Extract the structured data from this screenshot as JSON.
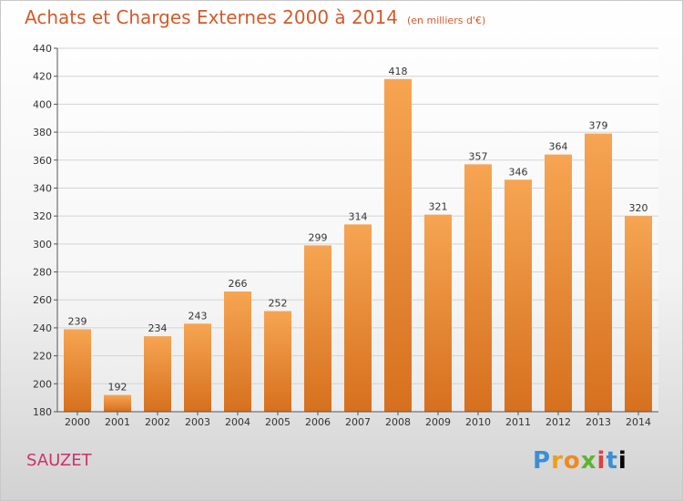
{
  "header": {
    "title": "Achats et Charges Externes 2000 à 2014",
    "unit": "(en milliers d'€)"
  },
  "footer": {
    "commune": "SAUZET",
    "logo_letters": [
      "P",
      "r",
      "o",
      "x",
      "i",
      "t",
      "i"
    ]
  },
  "chart_data": {
    "type": "bar",
    "categories": [
      "2000",
      "2001",
      "2002",
      "2003",
      "2004",
      "2005",
      "2006",
      "2007",
      "2008",
      "2009",
      "2010",
      "2011",
      "2012",
      "2013",
      "2014"
    ],
    "values": [
      239,
      192,
      234,
      243,
      266,
      252,
      299,
      314,
      418,
      321,
      357,
      346,
      364,
      379,
      320
    ],
    "title": "Achats et Charges Externes 2000 à 2014",
    "ylim": [
      180,
      440
    ],
    "yticks": [
      180,
      200,
      220,
      240,
      260,
      280,
      300,
      320,
      340,
      360,
      380,
      400,
      420,
      440
    ],
    "grid": true,
    "bar_color_top": "#f6a552",
    "bar_color_bottom": "#d6701e"
  }
}
